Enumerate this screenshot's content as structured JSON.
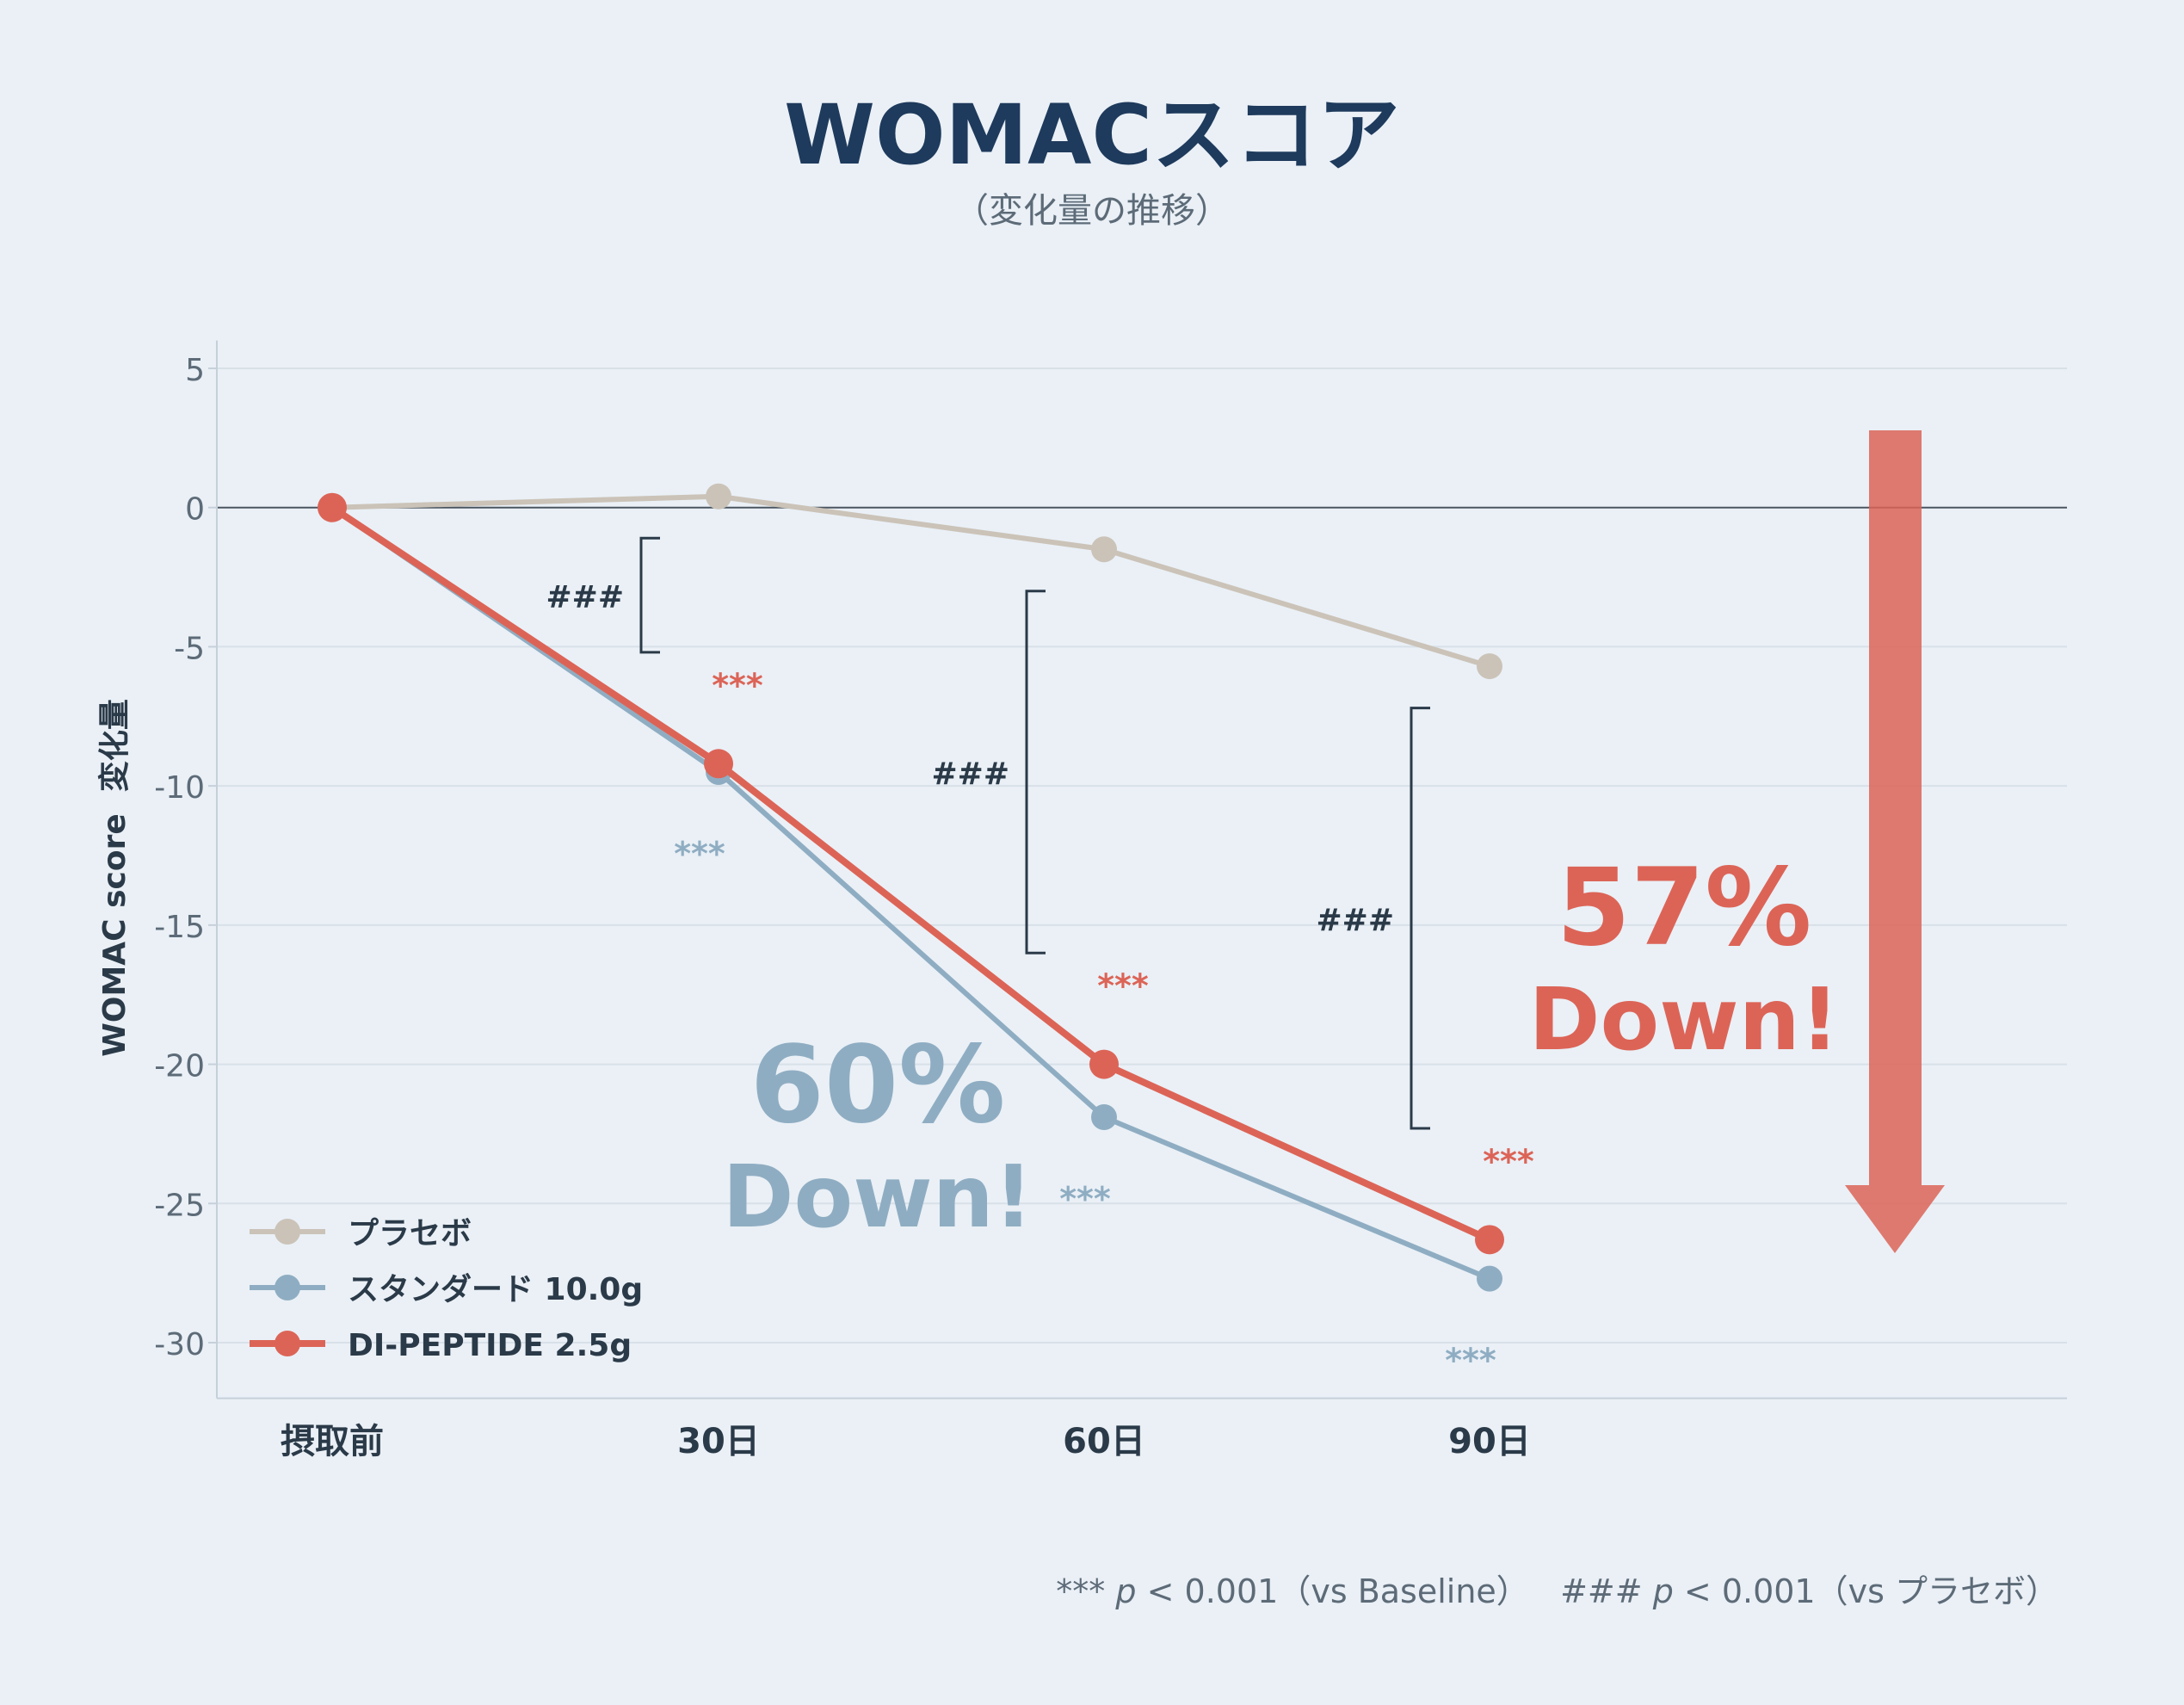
{
  "chart_data": {
    "type": "line",
    "title": "WOMACスコア",
    "subtitle": "（変化量の推移）",
    "ylabel": "WOMAC score  変化量",
    "xlabel": "",
    "categories": [
      "摂取前",
      "30日",
      "60日",
      "90日"
    ],
    "yticks": [
      "5",
      "0",
      "-5",
      "-10",
      "-15",
      "-20",
      "-25",
      "-30"
    ],
    "ytick_values": [
      5,
      0,
      -5,
      -10,
      -15,
      -20,
      -25,
      -30
    ],
    "ylim": [
      -32,
      6
    ],
    "grid": true,
    "legend_position": "bottom-left",
    "series": [
      {
        "name": "プラセボ",
        "color": "#cbc3b8",
        "values": [
          0,
          0.4,
          -1.5,
          -5.7
        ]
      },
      {
        "name": "スタンダード 10.0g",
        "color": "#8fadc2",
        "values": [
          0,
          -9.5,
          -21.9,
          -27.7
        ]
      },
      {
        "name": "DI-PEPTIDE 2.5g",
        "color": "#dc6457",
        "values": [
          0,
          -9.2,
          -20,
          -26.3
        ]
      }
    ],
    "significance": {
      "blue_marks": [
        {
          "label": "***",
          "category_index": 1
        },
        {
          "label": "***",
          "category_index": 2
        },
        {
          "label": "***",
          "category_index": 3
        }
      ],
      "red_marks": [
        {
          "label": "***",
          "category_index": 1
        },
        {
          "label": "***",
          "category_index": 2
        },
        {
          "label": "***",
          "category_index": 3
        }
      ],
      "placebo_brackets": [
        {
          "label": "###",
          "category_index": 1,
          "from": -1.1,
          "to": -5.2
        },
        {
          "label": "###",
          "category_index": 2,
          "from": -3.0,
          "to": -16.0
        },
        {
          "label": "###",
          "category_index": 3,
          "from": -7.2,
          "to": -22.3
        }
      ]
    },
    "annotations": {
      "blue_callout": {
        "percent": "60%",
        "text": "Down!",
        "color": "#8fadc2"
      },
      "red_callout": {
        "percent": "57%",
        "text": "Down!",
        "color": "#dc6457"
      }
    },
    "footnote": {
      "stars": "***",
      "p": "p",
      "p_value": "< 0.001",
      "vs_baseline": "（vs Baseline）",
      "hashes": "###",
      "vs_placebo": "（vs プラセボ）"
    }
  },
  "colors": {
    "background": "#eaf0f6",
    "title": "#1e3a5c",
    "text": "#2b3a48",
    "muted": "#5d6b78",
    "grid": "#d8e0e8",
    "zero_line": "#4a5560",
    "bracket": "#2b3a48",
    "arrow": "#dc6457"
  }
}
